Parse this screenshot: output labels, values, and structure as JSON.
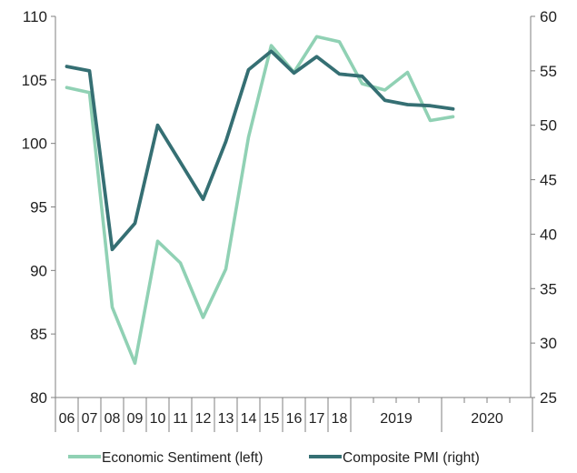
{
  "chart_data": {
    "type": "line",
    "title": "",
    "xlabel": "",
    "x_categories": [
      "06",
      "07",
      "08",
      "09",
      "10",
      "11",
      "12",
      "13",
      "14",
      "15",
      "16",
      "17",
      "18",
      "2019 Q1",
      "2019 Q2",
      "2019 Q3",
      "2019 Q4",
      "2020 Q1"
    ],
    "x_tick_labels": [
      "06",
      "07",
      "08",
      "09",
      "10",
      "11",
      "12",
      "13",
      "14",
      "15",
      "16",
      "17",
      "18",
      "2019",
      "2020"
    ],
    "left_axis": {
      "ylim": [
        80,
        110
      ],
      "ticks": [
        80,
        85,
        90,
        95,
        100,
        105,
        110
      ]
    },
    "right_axis": {
      "ylim": [
        25,
        60
      ],
      "ticks": [
        25,
        30,
        35,
        40,
        45,
        50,
        55,
        60
      ]
    },
    "series": [
      {
        "name": "Economic Sentiment (left)",
        "axis": "left",
        "color": "#90d1b4",
        "values": [
          104.4,
          104.0,
          87.1,
          82.7,
          92.3,
          90.6,
          86.3,
          90.1,
          100.5,
          107.7,
          105.6,
          108.4,
          108.0,
          104.7,
          104.2,
          105.6,
          101.8,
          102.1
        ]
      },
      {
        "name": "Composite PMI (right)",
        "axis": "right",
        "color": "#356f73",
        "values": [
          55.4,
          55.0,
          38.6,
          41.0,
          50.0,
          46.6,
          43.2,
          48.5,
          55.1,
          56.8,
          54.8,
          56.3,
          54.7,
          54.5,
          52.3,
          51.9,
          51.8,
          51.5
        ]
      }
    ],
    "legend": {
      "position": "bottom"
    },
    "grid": false
  }
}
